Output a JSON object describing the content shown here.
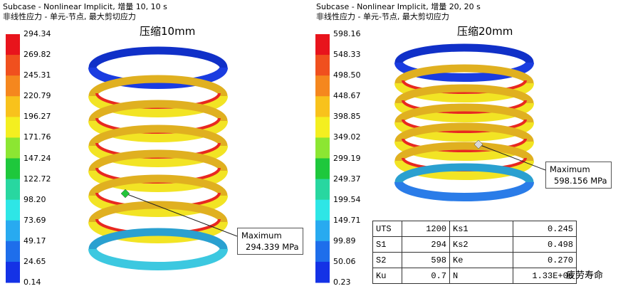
{
  "panels": [
    {
      "header": [
        "Subcase - Nonlinear Implicit, 增量 10, 10 s",
        "非线性应力 - 单元-节点, 最大剪切应力"
      ],
      "title": "压缩10mm",
      "legend": {
        "values": [
          "294.34",
          "269.82",
          "245.31",
          "220.79",
          "196.27",
          "171.76",
          "147.24",
          "122.72",
          "98.20",
          "73.69",
          "49.17",
          "24.65",
          "0.14"
        ],
        "colors": [
          "#e8141c",
          "#f0501e",
          "#f5871e",
          "#f8c21c",
          "#f4ef20",
          "#8ce632",
          "#1ec83c",
          "#28d7a0",
          "#2ee6e6",
          "#28aaf0",
          "#1e6eeb",
          "#1432e6",
          "#0a14d2"
        ]
      },
      "annotation": [
        "Maximum",
        "294.339 MPa"
      ]
    },
    {
      "header": [
        "Subcase - Nonlinear Implicit, 增量 20, 20 s",
        "非线性应力 - 单元-节点, 最大剪切应力"
      ],
      "title": "压缩20mm",
      "legend": {
        "values": [
          "598.16",
          "548.33",
          "498.50",
          "448.67",
          "398.85",
          "349.02",
          "299.19",
          "249.37",
          "199.54",
          "149.71",
          "99.89",
          "50.06",
          "0.23"
        ],
        "colors": [
          "#e8141c",
          "#f0501e",
          "#f5871e",
          "#f8c21c",
          "#f4ef20",
          "#8ce632",
          "#1ec83c",
          "#28d7a0",
          "#2ee6e6",
          "#28aaf0",
          "#1e6eeb",
          "#1432e6",
          "#0a14d2"
        ]
      },
      "annotation": [
        "Maximum",
        "598.156 MPa"
      ]
    }
  ],
  "table": {
    "rows": [
      [
        "UTS",
        "1200",
        "Ks1",
        "0.245"
      ],
      [
        "S1",
        "294",
        "Ks2",
        "0.498"
      ],
      [
        "S2",
        "598",
        "Ke",
        "0.270"
      ],
      [
        "Ku",
        "0.7",
        "N",
        "1.33E+06"
      ]
    ],
    "caption": "疲劳寿命"
  }
}
